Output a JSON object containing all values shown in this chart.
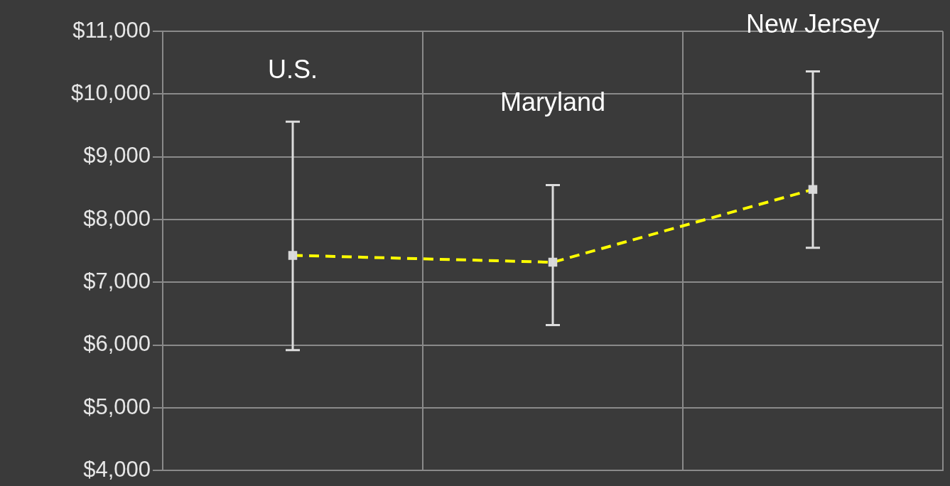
{
  "chart_data": {
    "type": "line",
    "categories": [
      null,
      null,
      null
    ],
    "series": [
      {
        "color": "#ffff00",
        "values": [
          7430,
          7320,
          8480
        ],
        "errors": [
          [
            5920,
            9560
          ],
          [
            6320,
            8550
          ],
          [
            7550,
            10360
          ]
        ]
      }
    ],
    "ylim": [
      4000,
      11000
    ],
    "yticks": [
      {
        "value": 4000,
        "label": "$4,000"
      },
      {
        "value": 5000,
        "label": "$5,000"
      },
      {
        "value": 6000,
        "label": "$6,000"
      },
      {
        "value": 7000,
        "label": "$7,000"
      },
      {
        "value": 8000,
        "label": "$8,000"
      },
      {
        "value": 9000,
        "label": "$9,000"
      },
      {
        "value": 10000,
        "label": "$10,000"
      },
      {
        "value": 11000,
        "label": "$11,000"
      }
    ],
    "annotations": [
      "U.S.",
      "Maryland",
      "New Jersey"
    ],
    "grid": true,
    "legend": false,
    "marker": "square",
    "line_style": "dashed",
    "tick_labels": "y"
  }
}
